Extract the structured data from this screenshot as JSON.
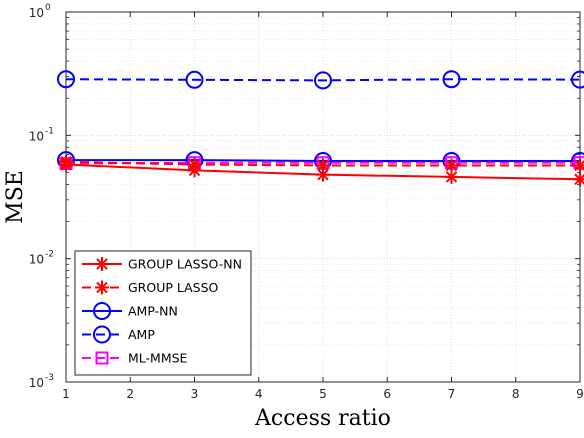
{
  "chart_data": {
    "type": "line",
    "xlabel": "Access ratio",
    "ylabel": "MSE",
    "x": [
      1,
      3,
      5,
      7,
      9
    ],
    "xlim": [
      1,
      9
    ],
    "xticks": [
      "1",
      "2",
      "3",
      "4",
      "5",
      "6",
      "7",
      "8",
      "9"
    ],
    "ylim": [
      0.001,
      1
    ],
    "yscale": "log",
    "yticks": [
      {
        "base": "10",
        "exp": "-3"
      },
      {
        "base": "10",
        "exp": "-2"
      },
      {
        "base": "10",
        "exp": "-1"
      },
      {
        "base": "10",
        "exp": "0"
      }
    ],
    "grid": true,
    "legend_position": "bottom-left",
    "series": [
      {
        "name": "GROUP LASSO-NN",
        "values": [
          0.058,
          0.052,
          0.048,
          0.046,
          0.044
        ],
        "color": "#ff0000",
        "dash": "solid",
        "marker": "asterisk"
      },
      {
        "name": "GROUP LASSO",
        "values": [
          0.061,
          0.058,
          0.057,
          0.057,
          0.057
        ],
        "color": "#ff0000",
        "dash": "dashed",
        "marker": "asterisk"
      },
      {
        "name": "AMP-NN",
        "values": [
          0.063,
          0.063,
          0.062,
          0.062,
          0.062
        ],
        "color": "#0000ff",
        "dash": "solid",
        "marker": "circle"
      },
      {
        "name": "AMP",
        "values": [
          0.285,
          0.282,
          0.279,
          0.285,
          0.283
        ],
        "color": "#0000ff",
        "dash": "dashed",
        "marker": "circle"
      },
      {
        "name": "ML-MMSE",
        "values": [
          0.059,
          0.06,
          0.06,
          0.06,
          0.06
        ],
        "color": "#ff00ff",
        "dash": "dashed",
        "marker": "square"
      }
    ]
  }
}
